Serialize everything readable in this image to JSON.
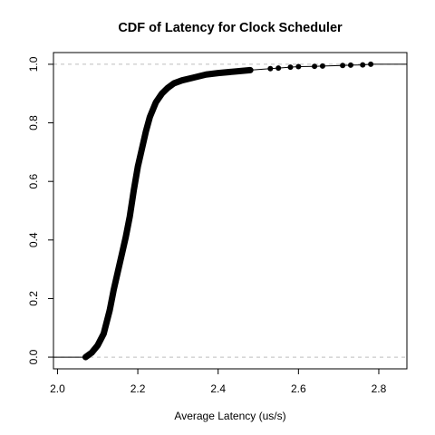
{
  "chart_data": {
    "type": "scatter",
    "title": "CDF of Latency for Clock Scheduler",
    "xlabel": "Average Latency (us/s)",
    "ylabel": "",
    "xlim": [
      1.99,
      2.87
    ],
    "ylim": [
      -0.04,
      1.04
    ],
    "x_ticks": [
      "2.0",
      "2.2",
      "2.4",
      "2.6",
      "2.8"
    ],
    "x_tick_values": [
      2.0,
      2.2,
      2.4,
      2.6,
      2.8
    ],
    "y_ticks": [
      "0.0",
      "0.2",
      "0.4",
      "0.6",
      "0.8",
      "1.0"
    ],
    "y_tick_values": [
      0.0,
      0.2,
      0.4,
      0.6,
      0.8,
      1.0
    ],
    "reference_lines_y": [
      0.0,
      1.0
    ],
    "curve_points": [
      {
        "x": 2.07,
        "y": 0.0
      },
      {
        "x": 2.085,
        "y": 0.015
      },
      {
        "x": 2.1,
        "y": 0.04
      },
      {
        "x": 2.115,
        "y": 0.08
      },
      {
        "x": 2.13,
        "y": 0.16
      },
      {
        "x": 2.14,
        "y": 0.23
      },
      {
        "x": 2.15,
        "y": 0.29
      },
      {
        "x": 2.16,
        "y": 0.35
      },
      {
        "x": 2.17,
        "y": 0.41
      },
      {
        "x": 2.18,
        "y": 0.48
      },
      {
        "x": 2.19,
        "y": 0.57
      },
      {
        "x": 2.2,
        "y": 0.65
      },
      {
        "x": 2.21,
        "y": 0.71
      },
      {
        "x": 2.22,
        "y": 0.77
      },
      {
        "x": 2.23,
        "y": 0.82
      },
      {
        "x": 2.245,
        "y": 0.87
      },
      {
        "x": 2.26,
        "y": 0.9
      },
      {
        "x": 2.275,
        "y": 0.92
      },
      {
        "x": 2.29,
        "y": 0.935
      },
      {
        "x": 2.31,
        "y": 0.945
      },
      {
        "x": 2.34,
        "y": 0.955
      },
      {
        "x": 2.37,
        "y": 0.965
      },
      {
        "x": 2.4,
        "y": 0.97
      },
      {
        "x": 2.44,
        "y": 0.975
      },
      {
        "x": 2.48,
        "y": 0.98
      }
    ],
    "tail_points": [
      {
        "x": 2.53,
        "y": 0.985
      },
      {
        "x": 2.55,
        "y": 0.987
      },
      {
        "x": 2.58,
        "y": 0.99
      },
      {
        "x": 2.6,
        "y": 0.992
      },
      {
        "x": 2.64,
        "y": 0.993
      },
      {
        "x": 2.66,
        "y": 0.994
      },
      {
        "x": 2.71,
        "y": 0.996
      },
      {
        "x": 2.73,
        "y": 0.997
      },
      {
        "x": 2.76,
        "y": 0.998
      },
      {
        "x": 2.78,
        "y": 1.0
      }
    ],
    "grid": false,
    "point_color": "#000000",
    "reference_line_color": "#bebebe"
  }
}
